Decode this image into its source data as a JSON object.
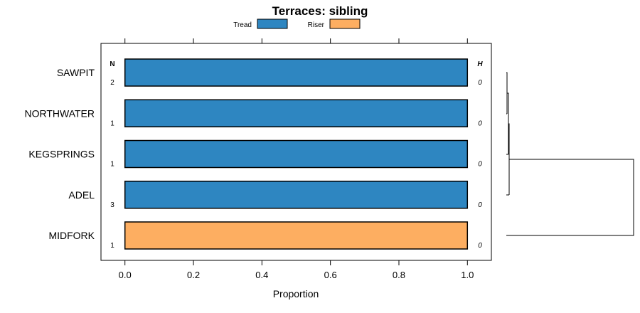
{
  "chart_data": {
    "type": "bar",
    "orientation": "horizontal",
    "stacked": true,
    "title": "Terraces: sibling",
    "xlabel": "Proportion",
    "ylabel": "",
    "xlim": [
      -0.07,
      1.07
    ],
    "xticks": [
      0.0,
      0.2,
      0.4,
      0.6,
      0.8,
      1.0
    ],
    "xtick_labels": [
      "0.0",
      "0.2",
      "0.4",
      "0.6",
      "0.8",
      "1.0"
    ],
    "categories": [
      "SAWPIT",
      "NORTHWATER",
      "KEGSPRINGS",
      "ADEL",
      "MIDFORK"
    ],
    "series": [
      {
        "name": "Tread",
        "color": "#2e86c1",
        "values": [
          1,
          1,
          1,
          1,
          0
        ]
      },
      {
        "name": "Riser",
        "color": "#fdae61",
        "values": [
          0,
          0,
          0,
          0,
          1
        ]
      }
    ],
    "n_column": {
      "header": "N",
      "values": [
        "2",
        "1",
        "1",
        "3",
        "1"
      ]
    },
    "h_column": {
      "header": "H",
      "values": [
        "0",
        "0",
        "0",
        "0",
        "0"
      ]
    },
    "legend_position": "top",
    "dendrogram": "right"
  }
}
